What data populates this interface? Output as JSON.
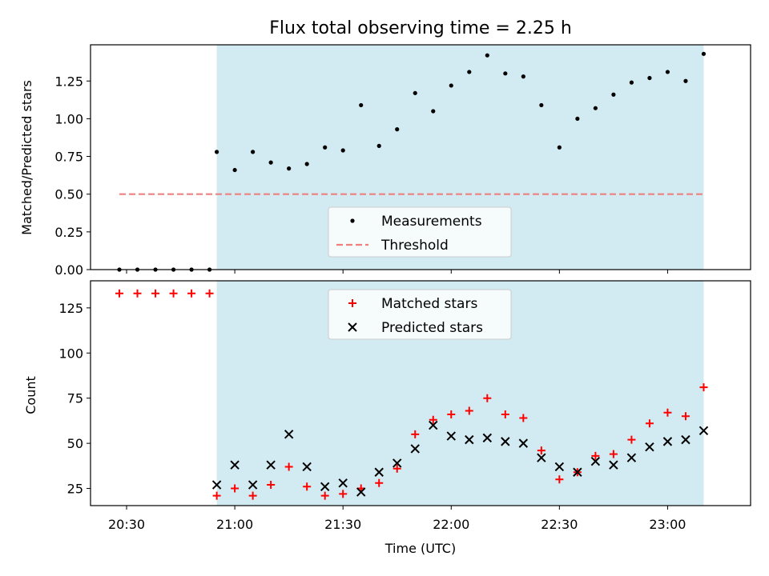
{
  "chart_data": [
    {
      "type": "scatter",
      "title": "Flux total observing time = 2.25 h",
      "xlabel": "",
      "ylabel": "Matched/Predicted stars",
      "ylim": [
        0,
        1.49
      ],
      "yticks": [
        0.0,
        0.25,
        0.5,
        0.75,
        1.0,
        1.25
      ],
      "ytick_labels": [
        "0.00",
        "0.25",
        "0.50",
        "0.75",
        "1.00",
        "1.25"
      ],
      "xlim": [
        "20:20",
        "23:23"
      ],
      "grid": false,
      "legend_position": "lower-center",
      "shaded_region": {
        "x": [
          "20:55",
          "23:10"
        ],
        "color": "#add8e6"
      },
      "series": [
        {
          "name": "Measurements",
          "marker": "dot",
          "color": "#000000",
          "x": [
            "20:28",
            "20:33",
            "20:38",
            "20:43",
            "20:48",
            "20:53",
            "20:55",
            "21:00",
            "21:05",
            "21:10",
            "21:15",
            "21:20",
            "21:25",
            "21:30",
            "21:35",
            "21:40",
            "21:45",
            "21:50",
            "21:55",
            "22:00",
            "22:05",
            "22:10",
            "22:15",
            "22:20",
            "22:25",
            "22:30",
            "22:35",
            "22:40",
            "22:45",
            "22:50",
            "22:55",
            "23:00",
            "23:05",
            "23:10"
          ],
          "y": [
            0,
            0,
            0,
            0,
            0,
            0,
            0.78,
            0.66,
            0.78,
            0.71,
            0.67,
            0.7,
            0.81,
            0.79,
            1.09,
            0.82,
            0.93,
            1.17,
            1.05,
            1.22,
            1.31,
            1.42,
            1.3,
            1.28,
            1.09,
            0.81,
            1.0,
            1.07,
            1.16,
            1.24,
            1.27,
            1.31,
            1.25,
            1.43
          ]
        },
        {
          "name": "Threshold",
          "style": "dashed-line",
          "color": "#f08080",
          "x": [
            "20:28",
            "23:10"
          ],
          "y": [
            0.5,
            0.5
          ]
        }
      ]
    },
    {
      "type": "scatter",
      "title": "",
      "xlabel": "Time (UTC)",
      "ylabel": "Count",
      "ylim": [
        15.5,
        140
      ],
      "yticks": [
        25,
        50,
        75,
        100,
        125
      ],
      "ytick_labels": [
        "25",
        "50",
        "75",
        "100",
        "125"
      ],
      "xlim": [
        "20:20",
        "23:23"
      ],
      "xticks": [
        "20:30",
        "21:00",
        "21:30",
        "22:00",
        "22:30",
        "23:00"
      ],
      "xtick_labels": [
        "20:30",
        "21:00",
        "21:30",
        "22:00",
        "22:30",
        "23:00"
      ],
      "grid": false,
      "legend_position": "upper-center",
      "shaded_region": {
        "x": [
          "20:55",
          "23:10"
        ],
        "color": "#add8e6"
      },
      "series": [
        {
          "name": "Matched stars",
          "marker": "plus",
          "color": "#ff0000",
          "x": [
            "20:28",
            "20:33",
            "20:38",
            "20:43",
            "20:48",
            "20:53",
            "20:55",
            "21:00",
            "21:05",
            "21:10",
            "21:15",
            "21:20",
            "21:25",
            "21:30",
            "21:35",
            "21:40",
            "21:45",
            "21:50",
            "21:55",
            "22:00",
            "22:05",
            "22:10",
            "22:15",
            "22:20",
            "22:25",
            "22:30",
            "22:35",
            "22:40",
            "22:45",
            "22:50",
            "22:55",
            "23:00",
            "23:05",
            "23:10"
          ],
          "y": [
            133,
            133,
            133,
            133,
            133,
            133,
            21,
            25,
            21,
            27,
            37,
            26,
            21,
            22,
            25,
            28,
            36,
            55,
            63,
            66,
            68,
            75,
            66,
            64,
            46,
            30,
            34,
            43,
            44,
            52,
            61,
            67,
            65,
            81
          ]
        },
        {
          "name": "Predicted stars",
          "marker": "x",
          "color": "#000000",
          "x": [
            "20:55",
            "21:00",
            "21:05",
            "21:10",
            "21:15",
            "21:20",
            "21:25",
            "21:30",
            "21:35",
            "21:40",
            "21:45",
            "21:50",
            "21:55",
            "22:00",
            "22:05",
            "22:10",
            "22:15",
            "22:20",
            "22:25",
            "22:30",
            "22:35",
            "22:40",
            "22:45",
            "22:50",
            "22:55",
            "23:00",
            "23:05",
            "23:10"
          ],
          "y": [
            27,
            38,
            27,
            38,
            55,
            37,
            26,
            28,
            23,
            34,
            39,
            47,
            60,
            54,
            52,
            53,
            51,
            50,
            42,
            37,
            34,
            40,
            38,
            42,
            48,
            51,
            52,
            57
          ]
        }
      ]
    }
  ]
}
